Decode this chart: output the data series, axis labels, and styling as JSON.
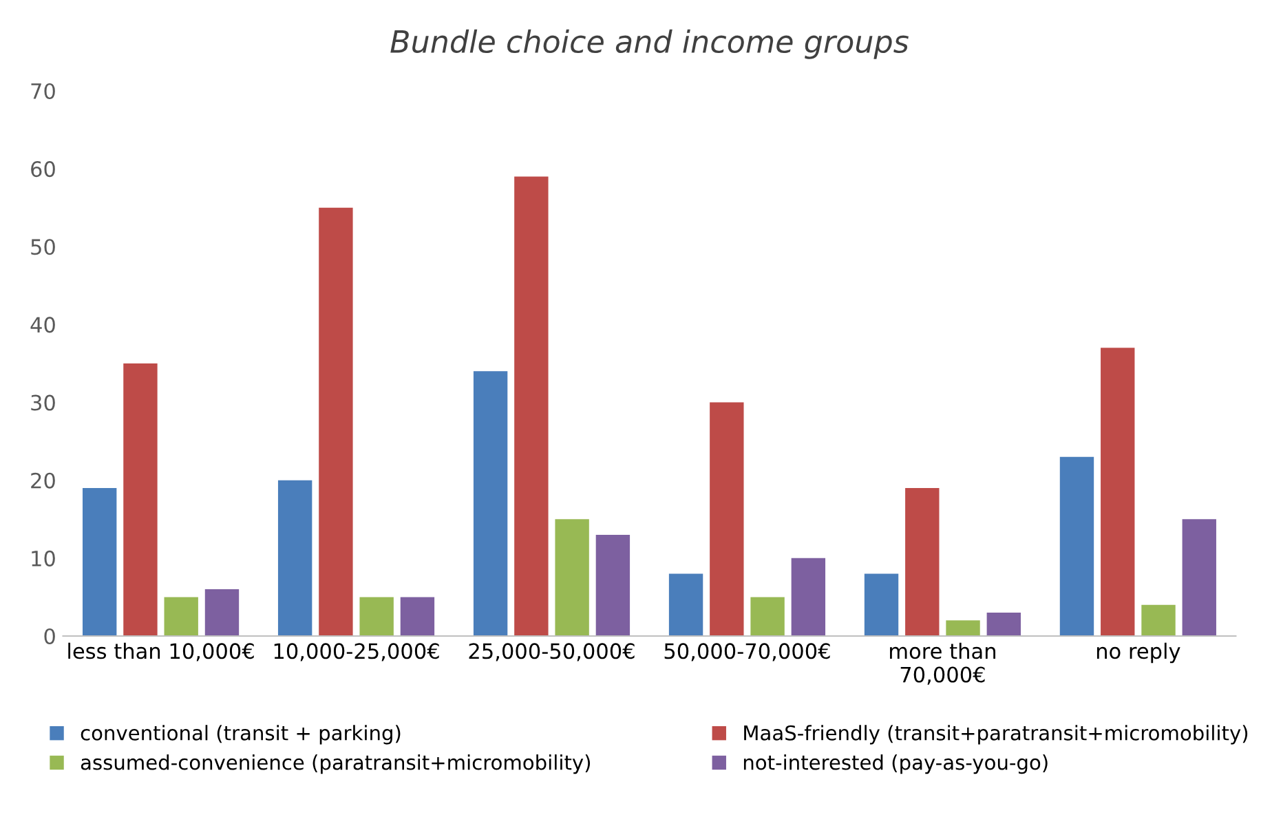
{
  "chart_data": {
    "type": "bar",
    "title": "Bundle choice and income groups",
    "categories": [
      "less than 10,000€",
      "10,000-25,000€",
      "25,000-50,000€",
      "50,000-70,000€",
      "more than\n70,000€",
      "no reply"
    ],
    "series": [
      {
        "name": "conventional (transit + parking)",
        "color": "#4a7ebb",
        "values": [
          19,
          20,
          34,
          8,
          8,
          23
        ]
      },
      {
        "name": "MaaS-friendly (transit+paratransit+micromobility)",
        "color": "#be4b48",
        "values": [
          35,
          55,
          59,
          30,
          19,
          37
        ]
      },
      {
        "name": "assumed-convenience (paratransit+micromobility)",
        "color": "#98b954",
        "values": [
          5,
          5,
          15,
          5,
          2,
          4
        ]
      },
      {
        "name": "not-interested (pay-as-you-go)",
        "color": "#7d60a0",
        "values": [
          6,
          5,
          13,
          10,
          3,
          15
        ]
      }
    ],
    "ylim": [
      0,
      70
    ],
    "yticks": [
      0,
      10,
      20,
      30,
      40,
      50,
      60,
      70
    ],
    "grid": false,
    "legend": "bottom"
  }
}
